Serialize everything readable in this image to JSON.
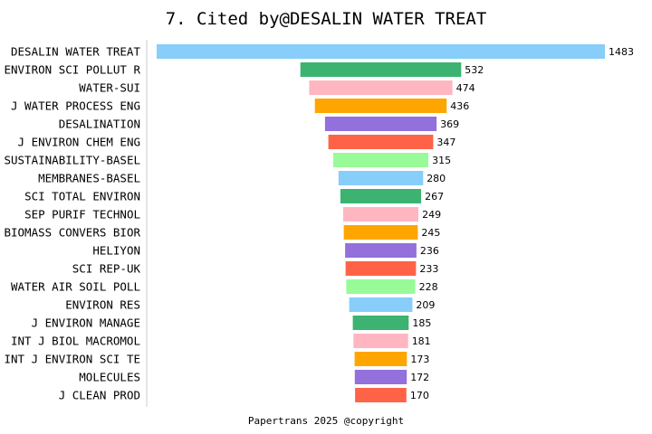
{
  "chart_data": {
    "type": "bar",
    "orientation": "horizontal",
    "layout": "centered-funnel",
    "title": "7. Cited by@DESALIN WATER TREAT",
    "categories": [
      "DESALIN WATER TREAT",
      "ENVIRON SCI POLLUT R",
      "WATER-SUI",
      "J WATER PROCESS ENG",
      "DESALINATION",
      "J ENVIRON CHEM ENG",
      "SUSTAINABILITY-BASEL",
      "MEMBRANES-BASEL",
      "SCI TOTAL ENVIRON",
      "SEP PURIF TECHNOL",
      "BIOMASS CONVERS BIOR",
      "HELIYON",
      "SCI REP-UK",
      "WATER AIR SOIL POLL",
      "ENVIRON RES",
      "J ENVIRON MANAGE",
      "INT J BIOL MACROMOL",
      "INT J ENVIRON SCI TE",
      "MOLECULES",
      "J CLEAN PROD"
    ],
    "values": [
      1483,
      532,
      474,
      436,
      369,
      347,
      315,
      280,
      267,
      249,
      245,
      236,
      233,
      228,
      209,
      185,
      181,
      173,
      172,
      170
    ],
    "colors": [
      "#87CEFA",
      "#3CB371",
      "#FFB6C1",
      "#FFA500",
      "#9370DB",
      "#FF6347",
      "#98FB98"
    ],
    "grid": false,
    "legend": false
  },
  "footer": "Papertrans 2025 @copyright"
}
